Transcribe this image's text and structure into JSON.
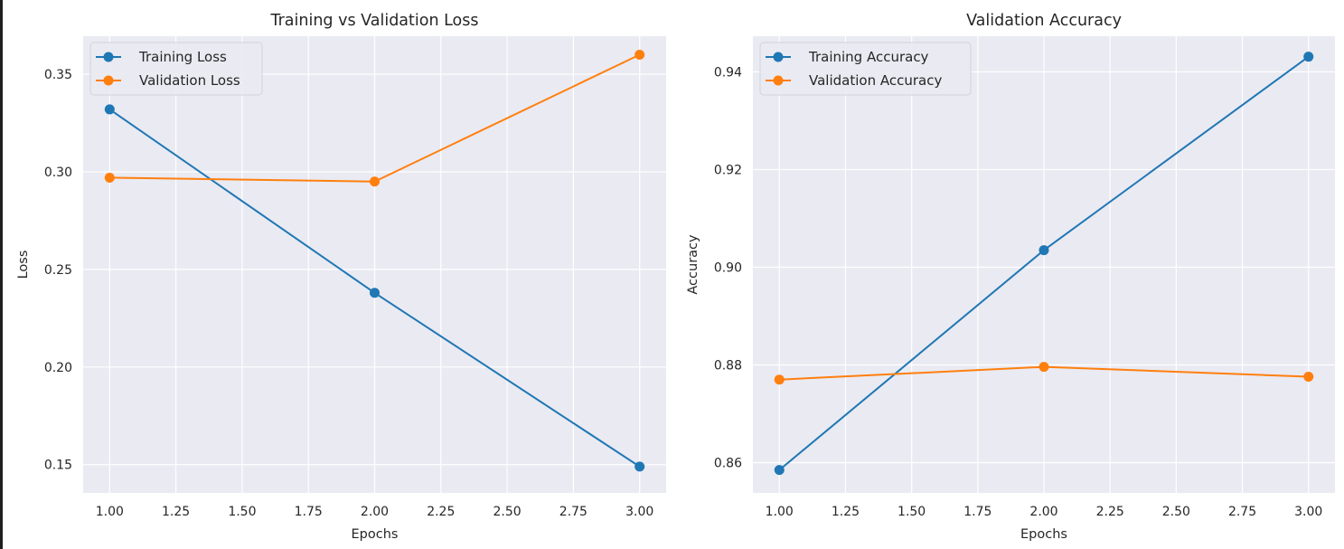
{
  "chart_data": [
    {
      "type": "line",
      "title": "Training vs Validation Loss",
      "xlabel": "Epochs",
      "ylabel": "Loss",
      "x": [
        1,
        2,
        3
      ],
      "xlim": [
        0.9,
        3.1
      ],
      "ylim": [
        0.1355,
        0.3695
      ],
      "xticks": [
        "1.00",
        "1.25",
        "1.50",
        "1.75",
        "2.00",
        "2.25",
        "2.50",
        "2.75",
        "3.00"
      ],
      "yticks": [
        "0.15",
        "0.20",
        "0.25",
        "0.30",
        "0.35"
      ],
      "grid": true,
      "legend": "upper-left",
      "series": [
        {
          "name": "Training Loss",
          "values": [
            0.332,
            0.238,
            0.149
          ],
          "color": "#1f77b4",
          "marker": "circle"
        },
        {
          "name": "Validation Loss",
          "values": [
            0.297,
            0.295,
            0.36
          ],
          "color": "#ff7f0e",
          "marker": "circle"
        }
      ]
    },
    {
      "type": "line",
      "title": "Validation Accuracy",
      "xlabel": "Epochs",
      "ylabel": "Accuracy",
      "x": [
        1,
        2,
        3
      ],
      "xlim": [
        0.9,
        3.1
      ],
      "ylim": [
        0.8538,
        0.9473
      ],
      "xticks": [
        "1.00",
        "1.25",
        "1.50",
        "1.75",
        "2.00",
        "2.25",
        "2.50",
        "2.75",
        "3.00"
      ],
      "yticks": [
        "0.86",
        "0.88",
        "0.90",
        "0.92",
        "0.94"
      ],
      "grid": true,
      "legend": "upper-left",
      "series": [
        {
          "name": "Training Accuracy",
          "values": [
            0.8585,
            0.9035,
            0.9431
          ],
          "color": "#1f77b4",
          "marker": "circle"
        },
        {
          "name": "Validation Accuracy",
          "values": [
            0.877,
            0.8796,
            0.8776
          ],
          "color": "#ff7f0e",
          "marker": "circle"
        }
      ]
    }
  ]
}
